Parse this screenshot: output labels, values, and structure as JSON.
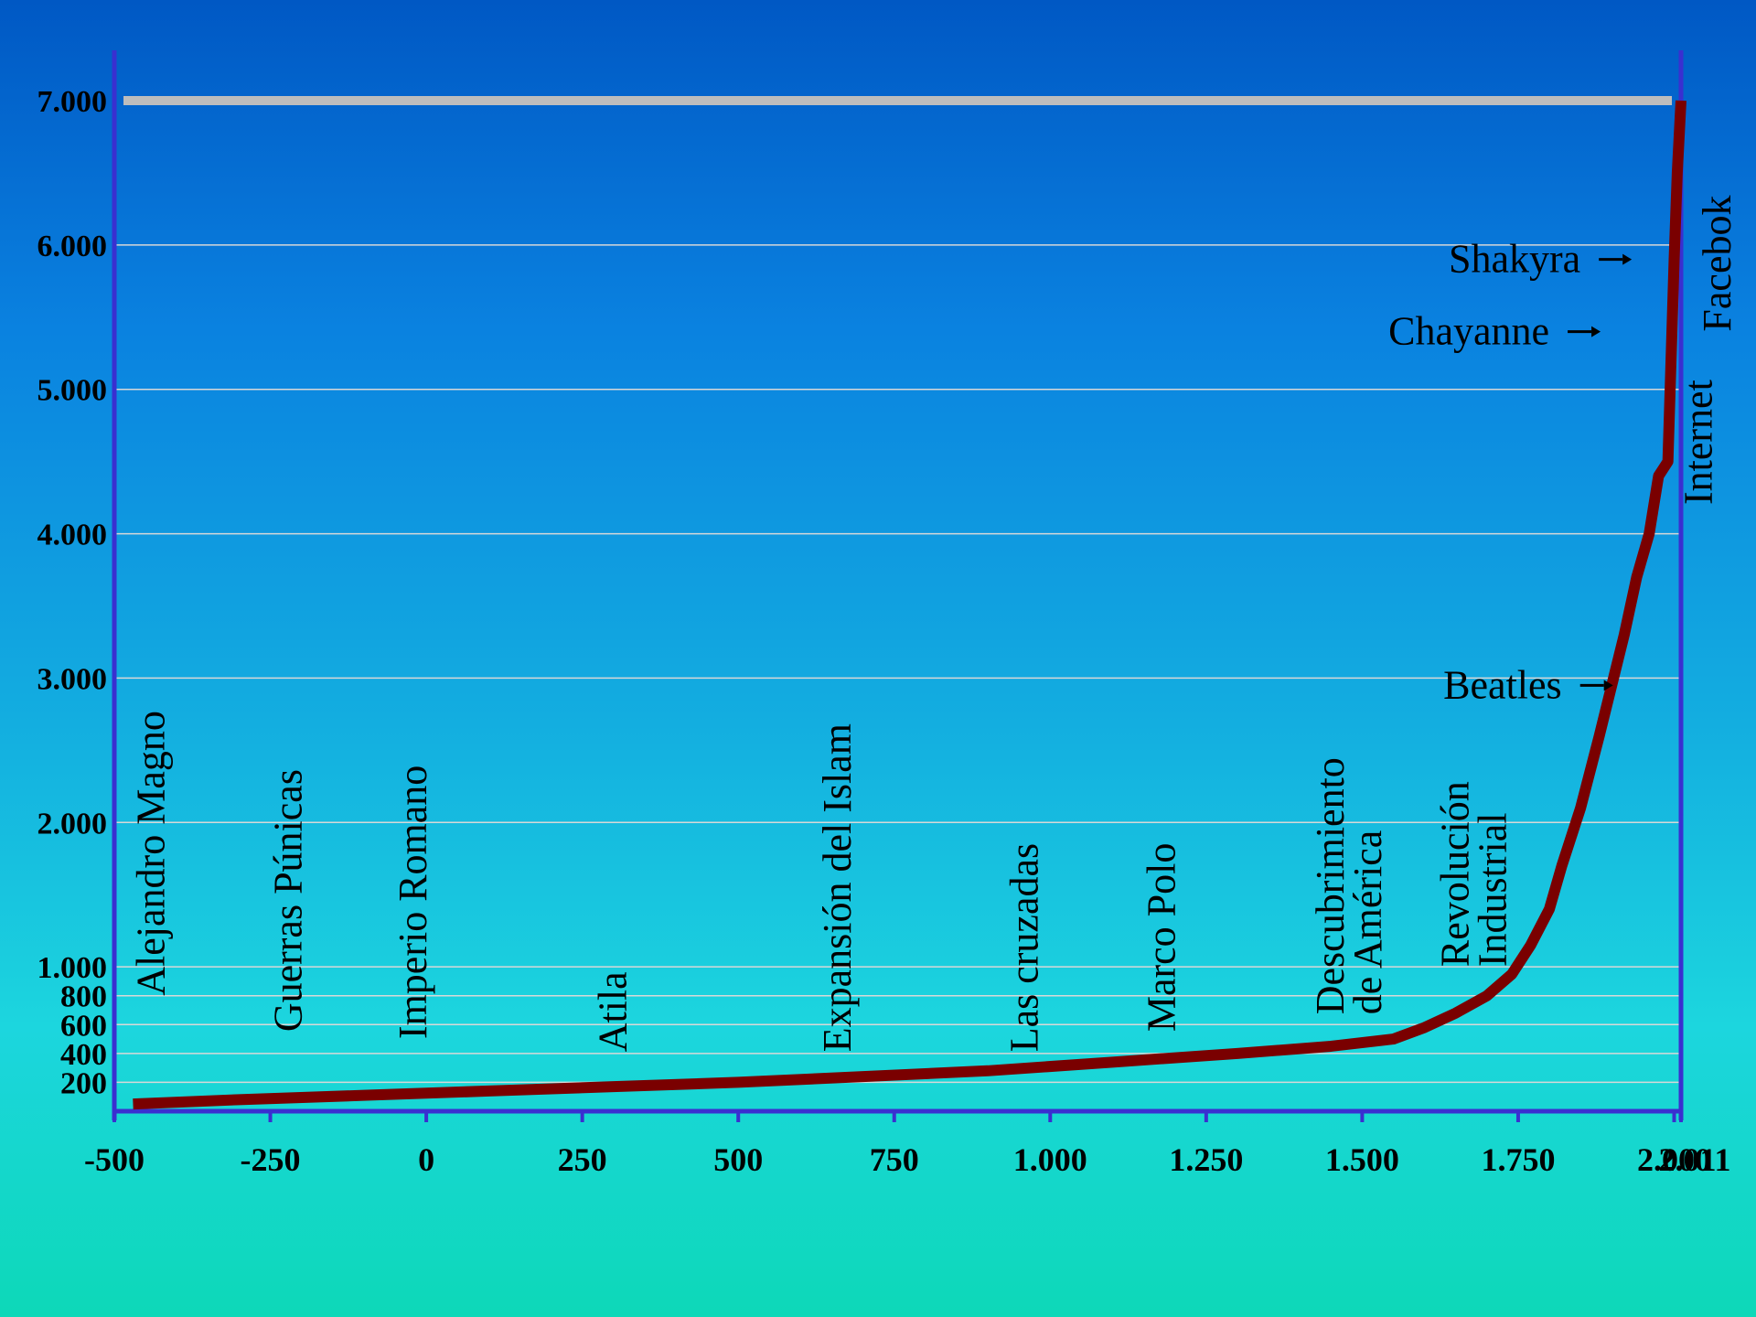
{
  "chart_data": {
    "type": "line",
    "title": "",
    "xlabel": "",
    "ylabel": "",
    "xlim": [
      -500,
      2011
    ],
    "ylim": [
      0,
      7000
    ],
    "grid": true,
    "colors": {
      "line": "#7a0000",
      "axis": "#3a2fd0",
      "grid": "#d8d8d8",
      "cap": "#bdbdbd"
    },
    "y_ticks": [
      {
        "value": 200,
        "label": "200"
      },
      {
        "value": 400,
        "label": "400"
      },
      {
        "value": 600,
        "label": "600"
      },
      {
        "value": 800,
        "label": "800"
      },
      {
        "value": 1000,
        "label": "1.000"
      },
      {
        "value": 2000,
        "label": "2.000"
      },
      {
        "value": 3000,
        "label": "3.000"
      },
      {
        "value": 4000,
        "label": "4.000"
      },
      {
        "value": 5000,
        "label": "5.000"
      },
      {
        "value": 6000,
        "label": "6.000"
      },
      {
        "value": 7000,
        "label": "7.000"
      }
    ],
    "x_ticks": [
      {
        "value": -500,
        "label": "-500"
      },
      {
        "value": -250,
        "label": "-250"
      },
      {
        "value": 0,
        "label": "0"
      },
      {
        "value": 250,
        "label": "250"
      },
      {
        "value": 500,
        "label": "500"
      },
      {
        "value": 750,
        "label": "750"
      },
      {
        "value": 1000,
        "label": "1.000"
      },
      {
        "value": 1250,
        "label": "1.250"
      },
      {
        "value": 1500,
        "label": "1.500"
      },
      {
        "value": 1750,
        "label": "1.750"
      },
      {
        "value": 2000,
        "label": "2.000"
      },
      {
        "value": 2011,
        "label": "2.011"
      }
    ],
    "series": [
      {
        "x": [
          -470,
          -300,
          -100,
          100,
          300,
          500,
          700,
          900,
          1100,
          1300,
          1450,
          1550,
          1600,
          1650,
          1700,
          1740,
          1770,
          1800,
          1820,
          1850,
          1880,
          1900,
          1920,
          1940,
          1960,
          1975,
          1990,
          1995,
          2000,
          2005,
          2011
        ],
        "y": [
          50,
          80,
          110,
          140,
          170,
          200,
          240,
          280,
          340,
          400,
          450,
          500,
          580,
          680,
          800,
          950,
          1150,
          1400,
          1700,
          2100,
          2600,
          2950,
          3300,
          3700,
          4000,
          4400,
          4500,
          5200,
          5900,
          6500,
          7000
        ]
      }
    ],
    "events": [
      {
        "x": -420,
        "label": "Alejandro Magno",
        "y": 800
      },
      {
        "x": -200,
        "label": "Guerras Púnicas",
        "y": 550
      },
      {
        "x": 0,
        "label": "Imperio Romano",
        "y": 500
      },
      {
        "x": 320,
        "label": "Atila",
        "y": 410
      },
      {
        "x": 680,
        "label": "Expansión del Islam",
        "y": 410
      },
      {
        "x": 980,
        "label": "Las cruzadas",
        "y": 410
      },
      {
        "x": 1200,
        "label": "Marco Polo",
        "y": 550
      },
      {
        "x": 1470,
        "label": "Descubrimiento",
        "y": 670
      },
      {
        "x": 1530,
        "label": "de América",
        "y": 670
      },
      {
        "x": 1670,
        "label": "Revolución",
        "y": 1000
      },
      {
        "x": 1730,
        "label": "Industrial",
        "y": 1000
      },
      {
        "x": 2060,
        "label": "Internet",
        "y": 4200
      },
      {
        "x": 2090,
        "label": "Facebok",
        "y": 5400
      }
    ],
    "annotations": [
      {
        "label": "Shakyra",
        "x": 1850,
        "y": 5900
      },
      {
        "label": "Chayanne",
        "x": 1800,
        "y": 5400
      },
      {
        "label": "Beatles",
        "x": 1820,
        "y": 2950
      }
    ]
  }
}
